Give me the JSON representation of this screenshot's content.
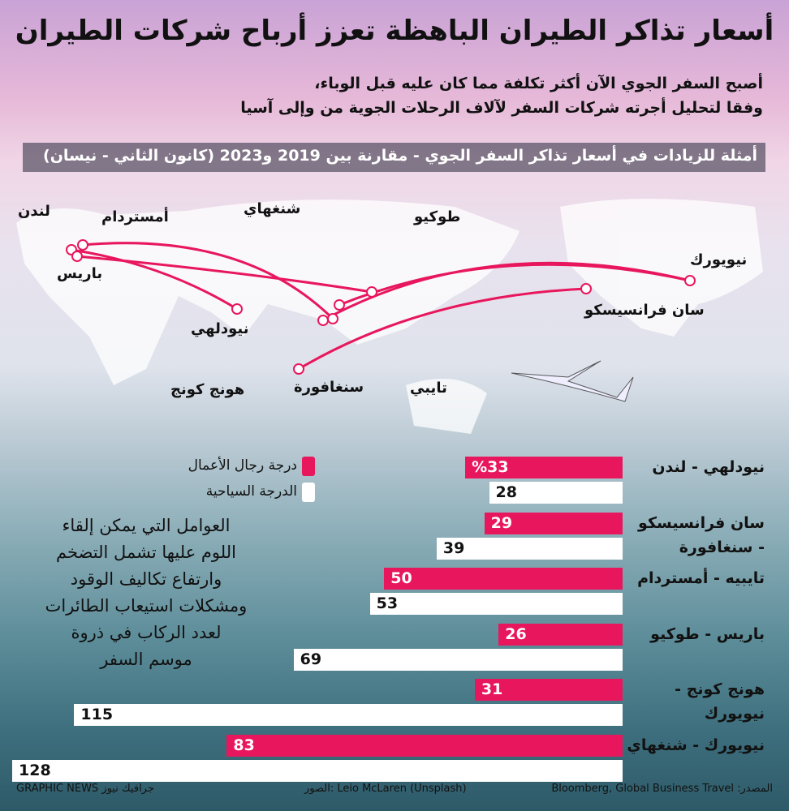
{
  "header": {
    "title": "أسعار تذاكر الطيران الباهظة تعزز أرباح شركات الطيران",
    "subtitle": [
      "أصبح السفر الجوي الآن أكثر تكلفة مما كان عليه قبل الوباء،",
      "وفقا لتحليل أجرته شركات السفر لآلاف الرحلات الجوية من وإلى آسيا"
    ]
  },
  "chart_data": {
    "type": "bar",
    "title": "أمثلة للزيادات في أسعار تذاكر السفر الجوي - مقارنة بين 2019 و2023 (كانون الثاني - نيسان)",
    "categories": [
      "نيودلهي - لندن",
      "سان فرانسيسكو - سنغافورة",
      "تايبيه - أمستردام",
      "باريس - طوكيو",
      "هونج كونج - نيويورك",
      "نيويورك - شنغهاي"
    ],
    "series": [
      {
        "name": "درجة رجال الأعمال",
        "color": "#e8175d",
        "values": [
          33,
          29,
          50,
          26,
          31,
          83
        ],
        "value_labels": [
          "%33",
          "29",
          "50",
          "26",
          "31",
          "83"
        ]
      },
      {
        "name": "الدرجة السياحية",
        "color": "#ffffff",
        "values": [
          28,
          39,
          53,
          69,
          115,
          128
        ]
      }
    ]
  },
  "map": {
    "cities": [
      "لندن",
      "أمستردام",
      "باريس",
      "نيودلهي",
      "شنغهاي",
      "طوكيو",
      "نيويورك",
      "سان فرانسيسكو",
      "هونج كونج",
      "سنغافورة",
      "تايبي"
    ]
  },
  "note": [
    "العوامل التي يمكن إلقاء",
    "اللوم عليها تشمل التضخم",
    "وارتفاع تكاليف الوقود",
    "ومشكلات استيعاب الطائرات",
    "لعدد الركاب في ذروة",
    "موسم السفر"
  ],
  "footer": {
    "brand": "GRAPHIC NEWS جرافيك نيوز",
    "photo": "الصور: Leio McLaren (Unsplash)",
    "source": "المصدر: Bloomberg, Global Business Travel"
  }
}
